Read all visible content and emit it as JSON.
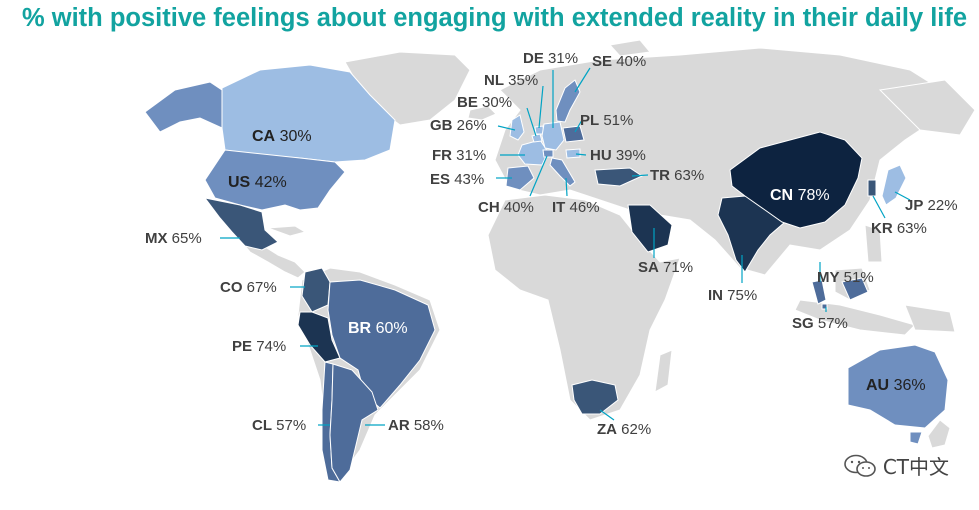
{
  "title": "% with positive feelings about engaging with extended reality in their daily life",
  "colors": {
    "title": "#12a3a0",
    "land": "#d9d9d9",
    "band_20_39": "#9dbde3",
    "band_40_49": "#6f8fbf",
    "band_50_59": "#4e6c9a",
    "band_60_69": "#3a5678",
    "band_70_79": "#1c3452",
    "band_78": "#0d2340"
  },
  "countries": [
    {
      "code": "CA",
      "value": "30%"
    },
    {
      "code": "US",
      "value": "42%"
    },
    {
      "code": "MX",
      "value": "65%"
    },
    {
      "code": "CO",
      "value": "67%"
    },
    {
      "code": "PE",
      "value": "74%"
    },
    {
      "code": "BR",
      "value": "60%"
    },
    {
      "code": "CL",
      "value": "57%"
    },
    {
      "code": "AR",
      "value": "58%"
    },
    {
      "code": "DE",
      "value": "31%"
    },
    {
      "code": "SE",
      "value": "40%"
    },
    {
      "code": "NL",
      "value": "35%"
    },
    {
      "code": "BE",
      "value": "30%"
    },
    {
      "code": "GB",
      "value": "26%"
    },
    {
      "code": "PL",
      "value": "51%"
    },
    {
      "code": "FR",
      "value": "31%"
    },
    {
      "code": "HU",
      "value": "39%"
    },
    {
      "code": "ES",
      "value": "43%"
    },
    {
      "code": "TR",
      "value": "63%"
    },
    {
      "code": "CH",
      "value": "40%"
    },
    {
      "code": "IT",
      "value": "46%"
    },
    {
      "code": "SA",
      "value": "71%"
    },
    {
      "code": "ZA",
      "value": "62%"
    },
    {
      "code": "IN",
      "value": "75%"
    },
    {
      "code": "CN",
      "value": "78%"
    },
    {
      "code": "JP",
      "value": "22%"
    },
    {
      "code": "KR",
      "value": "63%"
    },
    {
      "code": "MY",
      "value": "51%"
    },
    {
      "code": "SG",
      "value": "57%"
    },
    {
      "code": "AU",
      "value": "36%"
    }
  ],
  "watermark": {
    "text": "CT中文",
    "icon": "wechat-icon"
  }
}
